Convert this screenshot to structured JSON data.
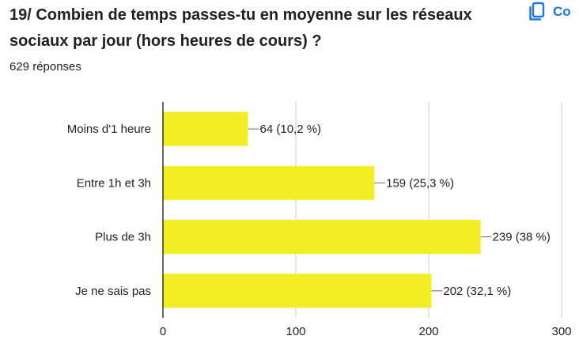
{
  "question": {
    "title": "19/ Combien de temps passes-tu en moyenne sur les réseaux sociaux par jour (hors heures de cours) ?",
    "responses": "629 réponses"
  },
  "toolbar": {
    "copy_label": "Co",
    "copy_icon": "copy-icon"
  },
  "colors": {
    "bar": "#f2ee23",
    "gridline": "#cccccc",
    "axis": "#333333"
  },
  "chart_data": {
    "type": "bar",
    "orientation": "horizontal",
    "categories": [
      "Moins d'1 heure",
      "Entre 1h et 3h",
      "Plus de 3h",
      "Je ne sais pas"
    ],
    "values": [
      64,
      159,
      239,
      202
    ],
    "data_labels": [
      "64 (10,2 %)",
      "159 (25,3 %)",
      "239 (38 %)",
      "202 (32,1 %)"
    ],
    "xlim": [
      0,
      300
    ],
    "xticks": [
      0,
      100,
      200,
      300
    ],
    "xtick_labels": [
      "0",
      "100",
      "200",
      "300"
    ],
    "grid": true,
    "legend": "none"
  }
}
